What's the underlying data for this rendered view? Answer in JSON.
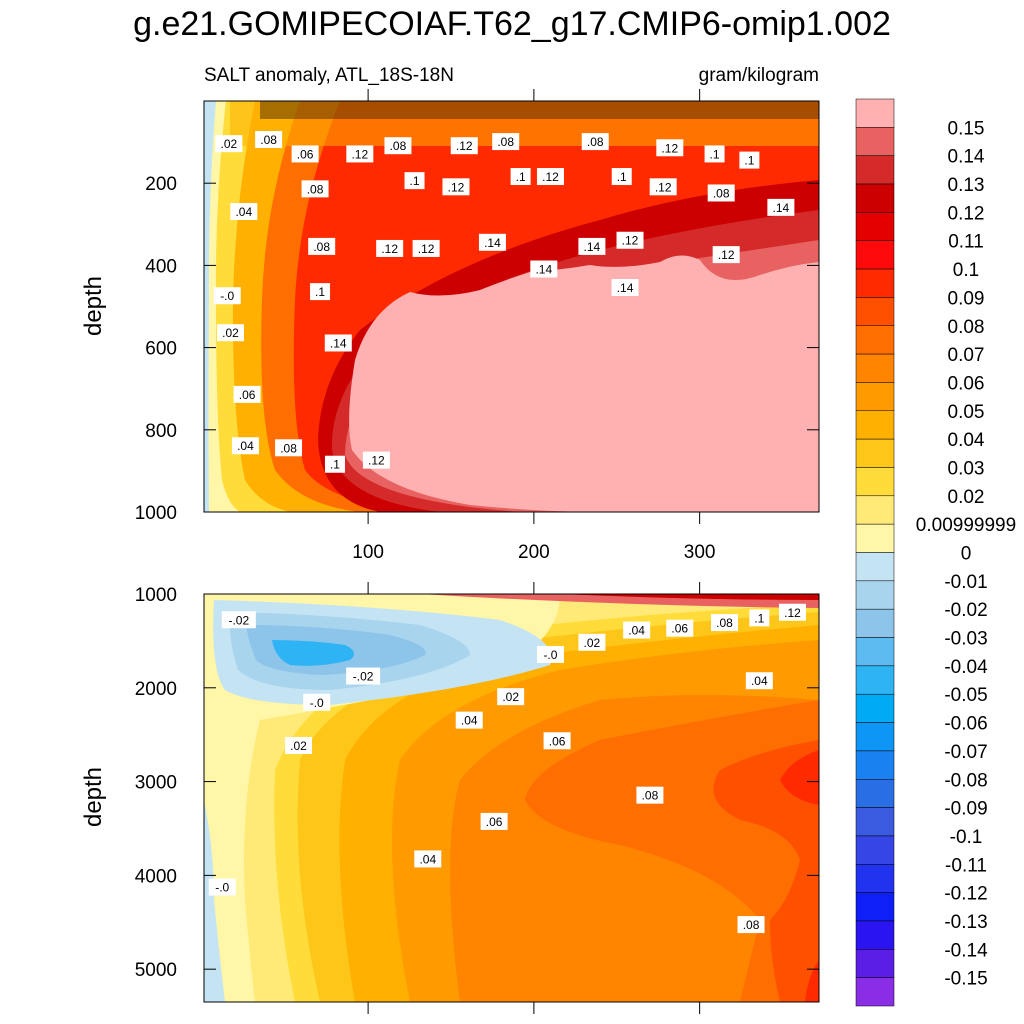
{
  "chart_data": {
    "type": "heatmap",
    "title": "g.e21.GOMIPECOIAF.T62_g17.CMIP6-omip1.002",
    "panels": [
      {
        "id": "upper",
        "subtitle_left": "SALT anomaly, ATL_18S-18N",
        "subtitle_right": "gram/kilogram",
        "ylabel": "depth",
        "xlim": [
          1,
          372
        ],
        "ylim": [
          0,
          1000
        ],
        "y_inverted": true,
        "x_ticks": [
          100,
          200,
          300
        ],
        "y_ticks": [
          200,
          400,
          600,
          800,
          1000
        ],
        "contour_labels": [
          {
            "text": ".02",
            "x": 16,
            "y": 105
          },
          {
            "text": ".08",
            "x": 40,
            "y": 95
          },
          {
            "text": ".06",
            "x": 62,
            "y": 130
          },
          {
            "text": ".12",
            "x": 95,
            "y": 130
          },
          {
            "text": ".08",
            "x": 118,
            "y": 110
          },
          {
            "text": ".12",
            "x": 158,
            "y": 110
          },
          {
            "text": ".08",
            "x": 183,
            "y": 100
          },
          {
            "text": ".08",
            "x": 237,
            "y": 100
          },
          {
            "text": ".12",
            "x": 282,
            "y": 115
          },
          {
            "text": ".1",
            "x": 309,
            "y": 130
          },
          {
            "text": ".1",
            "x": 330,
            "y": 145
          },
          {
            "text": ".04",
            "x": 25,
            "y": 270
          },
          {
            "text": ".08",
            "x": 68,
            "y": 215
          },
          {
            "text": ".1",
            "x": 128,
            "y": 195
          },
          {
            "text": ".12",
            "x": 153,
            "y": 210
          },
          {
            "text": ".1",
            "x": 192,
            "y": 185
          },
          {
            "text": ".12",
            "x": 210,
            "y": 185
          },
          {
            "text": ".1",
            "x": 253,
            "y": 185
          },
          {
            "text": ".12",
            "x": 278,
            "y": 210
          },
          {
            "text": ".08",
            "x": 313,
            "y": 225
          },
          {
            "text": ".14",
            "x": 349,
            "y": 260
          },
          {
            "text": ".08",
            "x": 72,
            "y": 355
          },
          {
            "text": ".12",
            "x": 113,
            "y": 360
          },
          {
            "text": ".12",
            "x": 135,
            "y": 360
          },
          {
            "text": ".14",
            "x": 175,
            "y": 345
          },
          {
            "text": ".14",
            "x": 235,
            "y": 355
          },
          {
            "text": ".12",
            "x": 258,
            "y": 340
          },
          {
            "text": ".12",
            "x": 316,
            "y": 375
          },
          {
            "text": ".14",
            "x": 206,
            "y": 410
          },
          {
            "text": ".14",
            "x": 255,
            "y": 455
          },
          {
            "text": ".1",
            "x": 71,
            "y": 465
          },
          {
            "text": "-.0",
            "x": 15,
            "y": 475
          },
          {
            "text": ".02",
            "x": 17,
            "y": 565
          },
          {
            "text": ".14",
            "x": 82,
            "y": 590
          },
          {
            "text": ".06",
            "x": 27,
            "y": 715
          },
          {
            "text": ".04",
            "x": 26,
            "y": 840
          },
          {
            "text": ".08",
            "x": 52,
            "y": 845
          },
          {
            "text": ".1",
            "x": 80,
            "y": 885
          },
          {
            "text": ".12",
            "x": 105,
            "y": 875
          }
        ]
      },
      {
        "id": "lower",
        "ylabel": "depth",
        "xlim": [
          1,
          372
        ],
        "ylim": [
          1000,
          5350
        ],
        "y_inverted": true,
        "y_ticks": [
          1000,
          2000,
          3000,
          4000,
          5000
        ],
        "contour_labels": [
          {
            "text": "-.02",
            "x": 22,
            "y": 1280
          },
          {
            "text": "-.02",
            "x": 97,
            "y": 1880
          },
          {
            "text": "-.0",
            "x": 69,
            "y": 2160
          },
          {
            "text": "-.0",
            "x": 210,
            "y": 1650
          },
          {
            "text": ".02",
            "x": 235,
            "y": 1520
          },
          {
            "text": ".04",
            "x": 262,
            "y": 1390
          },
          {
            "text": ".06",
            "x": 288,
            "y": 1370
          },
          {
            "text": ".08",
            "x": 315,
            "y": 1310
          },
          {
            "text": ".1",
            "x": 336,
            "y": 1260
          },
          {
            "text": ".12",
            "x": 356,
            "y": 1200
          },
          {
            "text": ".02",
            "x": 186,
            "y": 2100
          },
          {
            "text": ".04",
            "x": 161,
            "y": 2350
          },
          {
            "text": ".02",
            "x": 58,
            "y": 2620
          },
          {
            "text": ".06",
            "x": 214,
            "y": 2570
          },
          {
            "text": ".04",
            "x": 336,
            "y": 1930
          },
          {
            "text": ".08",
            "x": 270,
            "y": 3150
          },
          {
            "text": ".06",
            "x": 176,
            "y": 3430
          },
          {
            "text": ".04",
            "x": 136,
            "y": 3830
          },
          {
            "text": "-.0",
            "x": 12,
            "y": 4130
          },
          {
            "text": ".08",
            "x": 331,
            "y": 4530
          }
        ]
      }
    ],
    "colorbar": {
      "labels": [
        "0.15",
        "0.14",
        "0.13",
        "0.12",
        "0.11",
        "0.1",
        "0.09",
        "0.08",
        "0.07",
        "0.06",
        "0.05",
        "0.04",
        "0.03",
        "0.02",
        "0.00999999",
        "0",
        "-0.01",
        "-0.02",
        "-0.03",
        "-0.04",
        "-0.05",
        "-0.06",
        "-0.07",
        "-0.08",
        "-0.09",
        "-0.1",
        "-0.11",
        "-0.12",
        "-0.13",
        "-0.14",
        "-0.15"
      ],
      "colors": [
        "#ffb0b0",
        "#e86262",
        "#d42a2a",
        "#cc0000",
        "#e50000",
        "#ff0a0a",
        "#ff2a00",
        "#ff5000",
        "#ff6e00",
        "#ff8400",
        "#ff9a00",
        "#ffb000",
        "#ffc61a",
        "#ffdc3a",
        "#ffea78",
        "#fff6a8",
        "#c4e4f4",
        "#a8d4ee",
        "#8cc4ea",
        "#5ebbf2",
        "#2eb4f5",
        "#00aaf5",
        "#0d96f5",
        "#1a82f0",
        "#2a6ee6",
        "#3a5ae0",
        "#3646e6",
        "#2233f0",
        "#0f1ff8",
        "#2a14f2",
        "#5a1ee6",
        "#8a2ee6"
      ]
    }
  }
}
